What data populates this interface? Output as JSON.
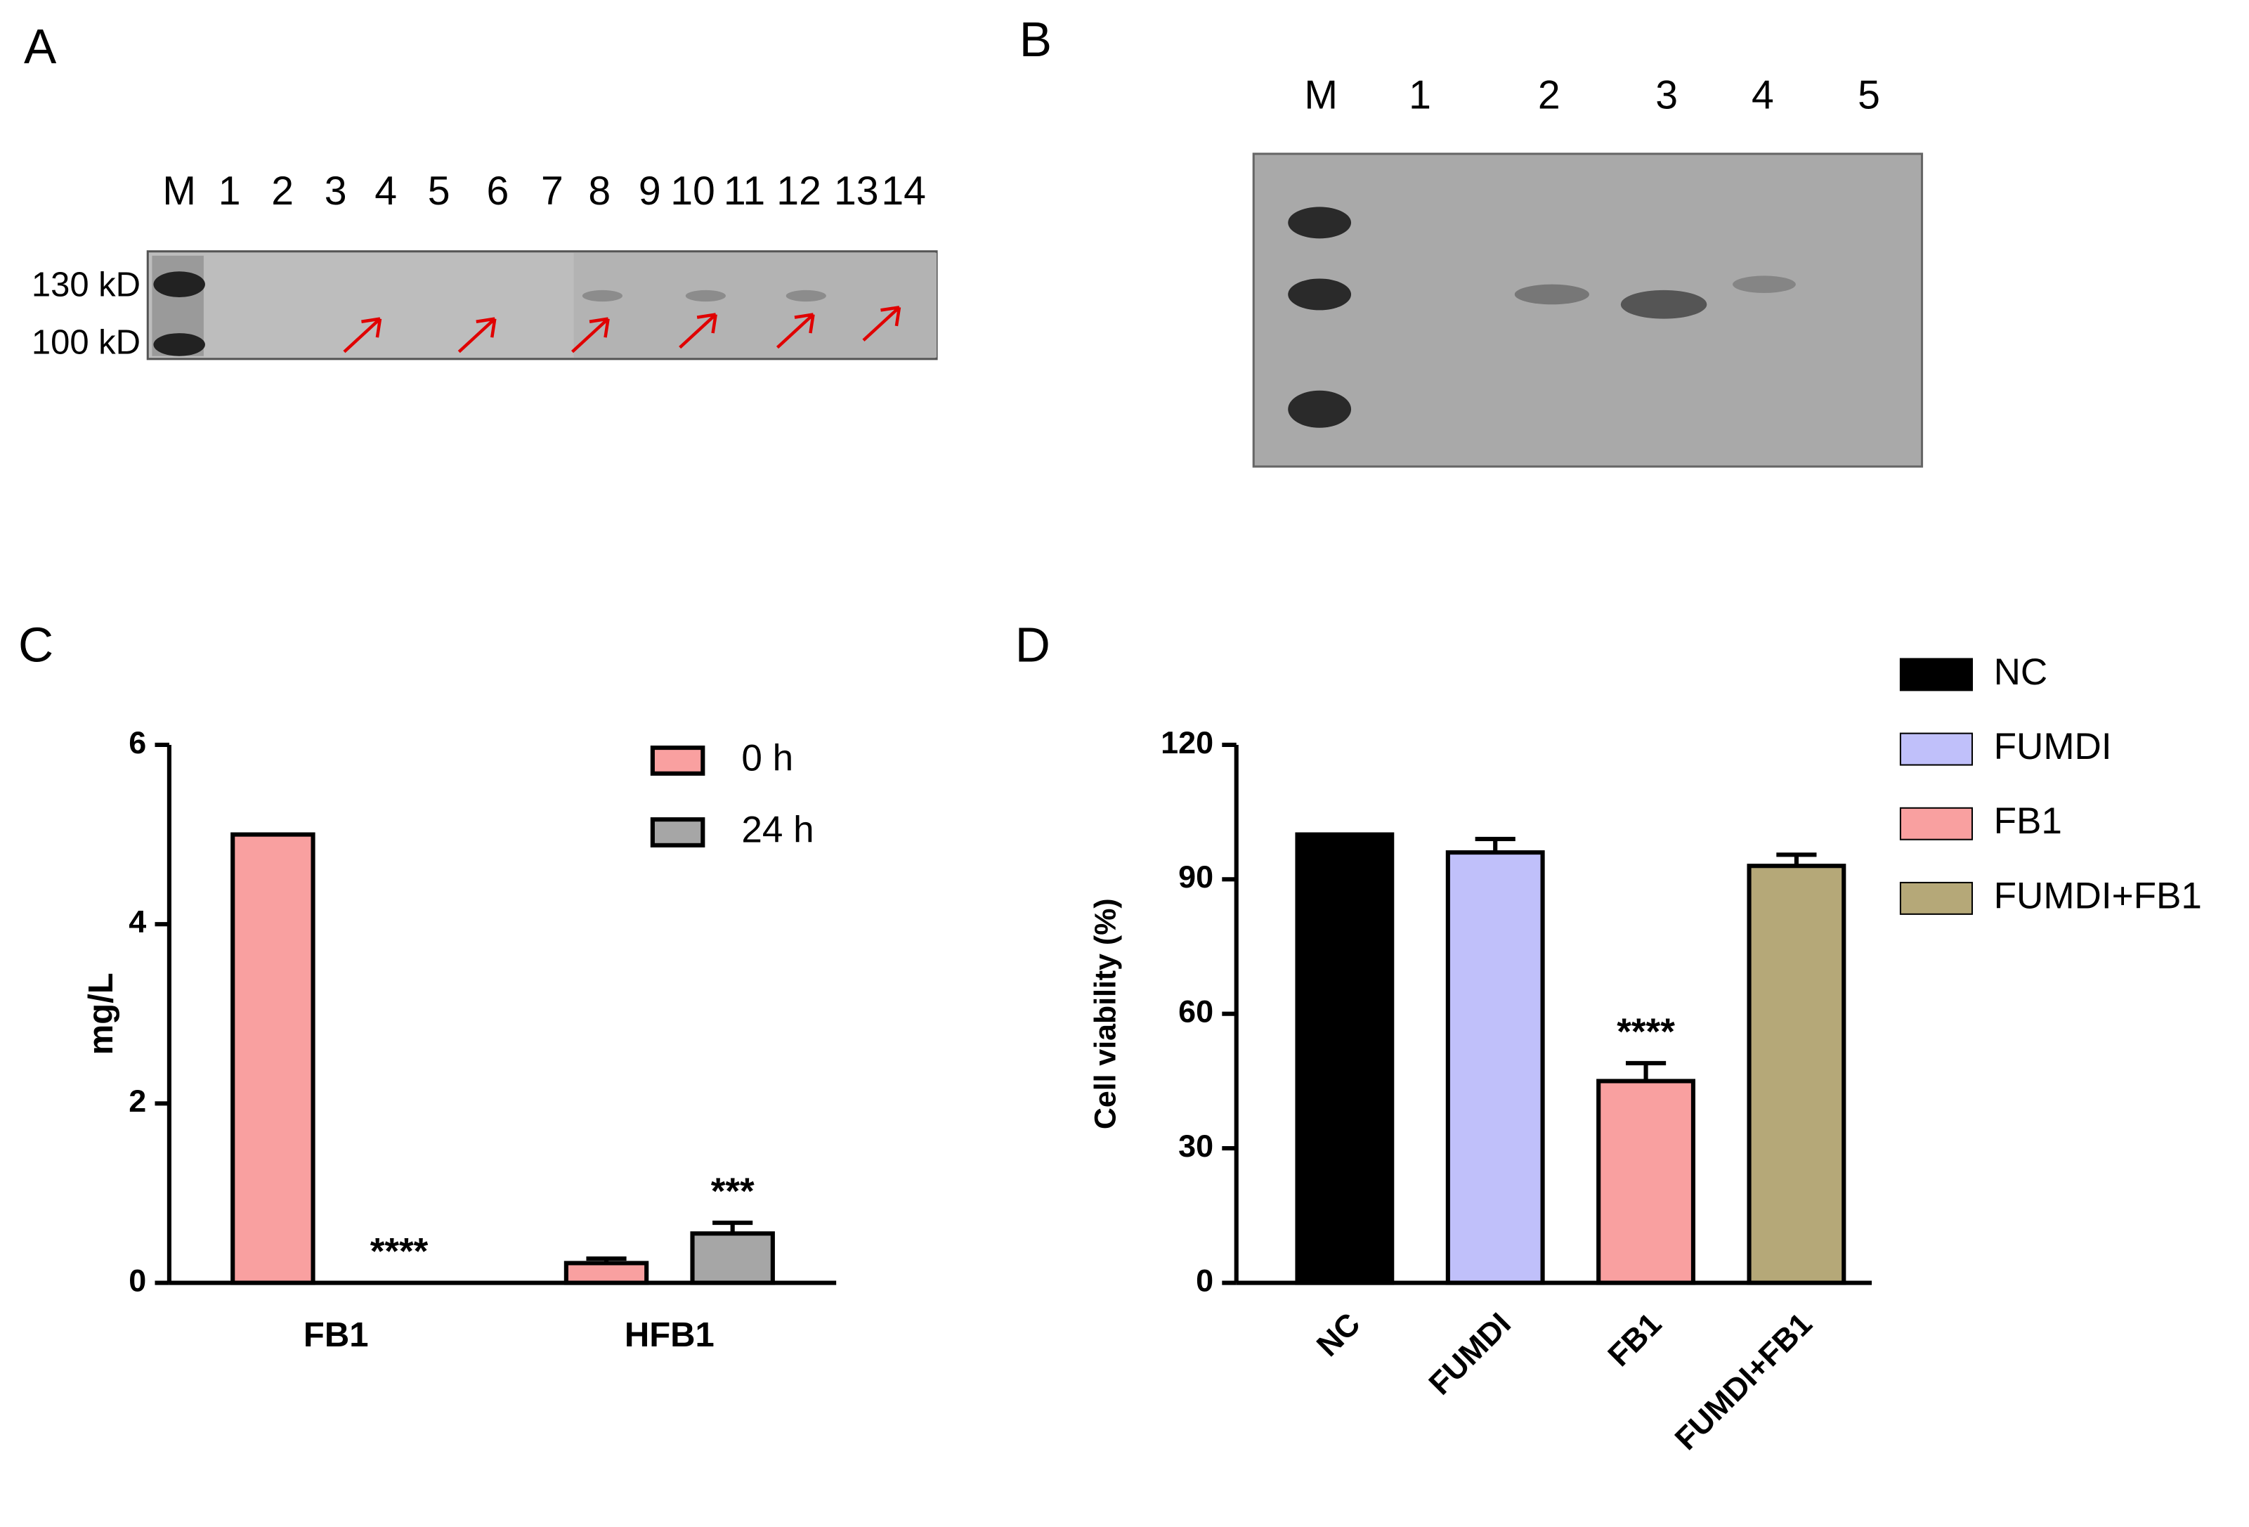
{
  "panels": [
    {
      "label": "A",
      "lanes": [
        "M",
        "1",
        "2",
        "3",
        "4",
        "5",
        "6",
        "7",
        "8",
        "9",
        "10",
        "11",
        "12",
        "13",
        "14"
      ],
      "markers": [
        "130 kD",
        "100 kD"
      ]
    },
    {
      "label": "B",
      "lanes": [
        "M",
        "1",
        "2",
        "3",
        "4",
        "5"
      ]
    }
  ],
  "chart_data": [
    {
      "type": "bar",
      "panel": "C",
      "ylabel": "mg/L",
      "categories": [
        "FB1",
        "HFB1"
      ],
      "series": [
        {
          "name": "0 h",
          "color": "#f9a0a0",
          "values": [
            5.0,
            0.22
          ],
          "errors": [
            null,
            0.05
          ],
          "annotations": [
            null,
            null
          ]
        },
        {
          "name": "24 h",
          "color": "#a6a6a6",
          "values": [
            0,
            0.55
          ],
          "errors": [
            null,
            0.12
          ],
          "annotations": [
            "****",
            "***"
          ]
        }
      ],
      "ylim": [
        0,
        6
      ],
      "yticks": [
        0,
        2,
        4,
        6
      ]
    },
    {
      "type": "bar",
      "panel": "D",
      "ylabel": "Cell viability (%)",
      "categories": [
        "NC",
        "FUMDI",
        "FB1",
        "FUMDI+FB1"
      ],
      "values": [
        100,
        96,
        45,
        93
      ],
      "errors": [
        null,
        3,
        4,
        2.5
      ],
      "annotations": [
        null,
        null,
        "****",
        null
      ],
      "colors": [
        "#000000",
        "#c0c0fa",
        "#f9a0a0",
        "#b5a878"
      ],
      "ylim": [
        0,
        120
      ],
      "yticks": [
        0,
        30,
        60,
        90,
        120
      ]
    }
  ]
}
